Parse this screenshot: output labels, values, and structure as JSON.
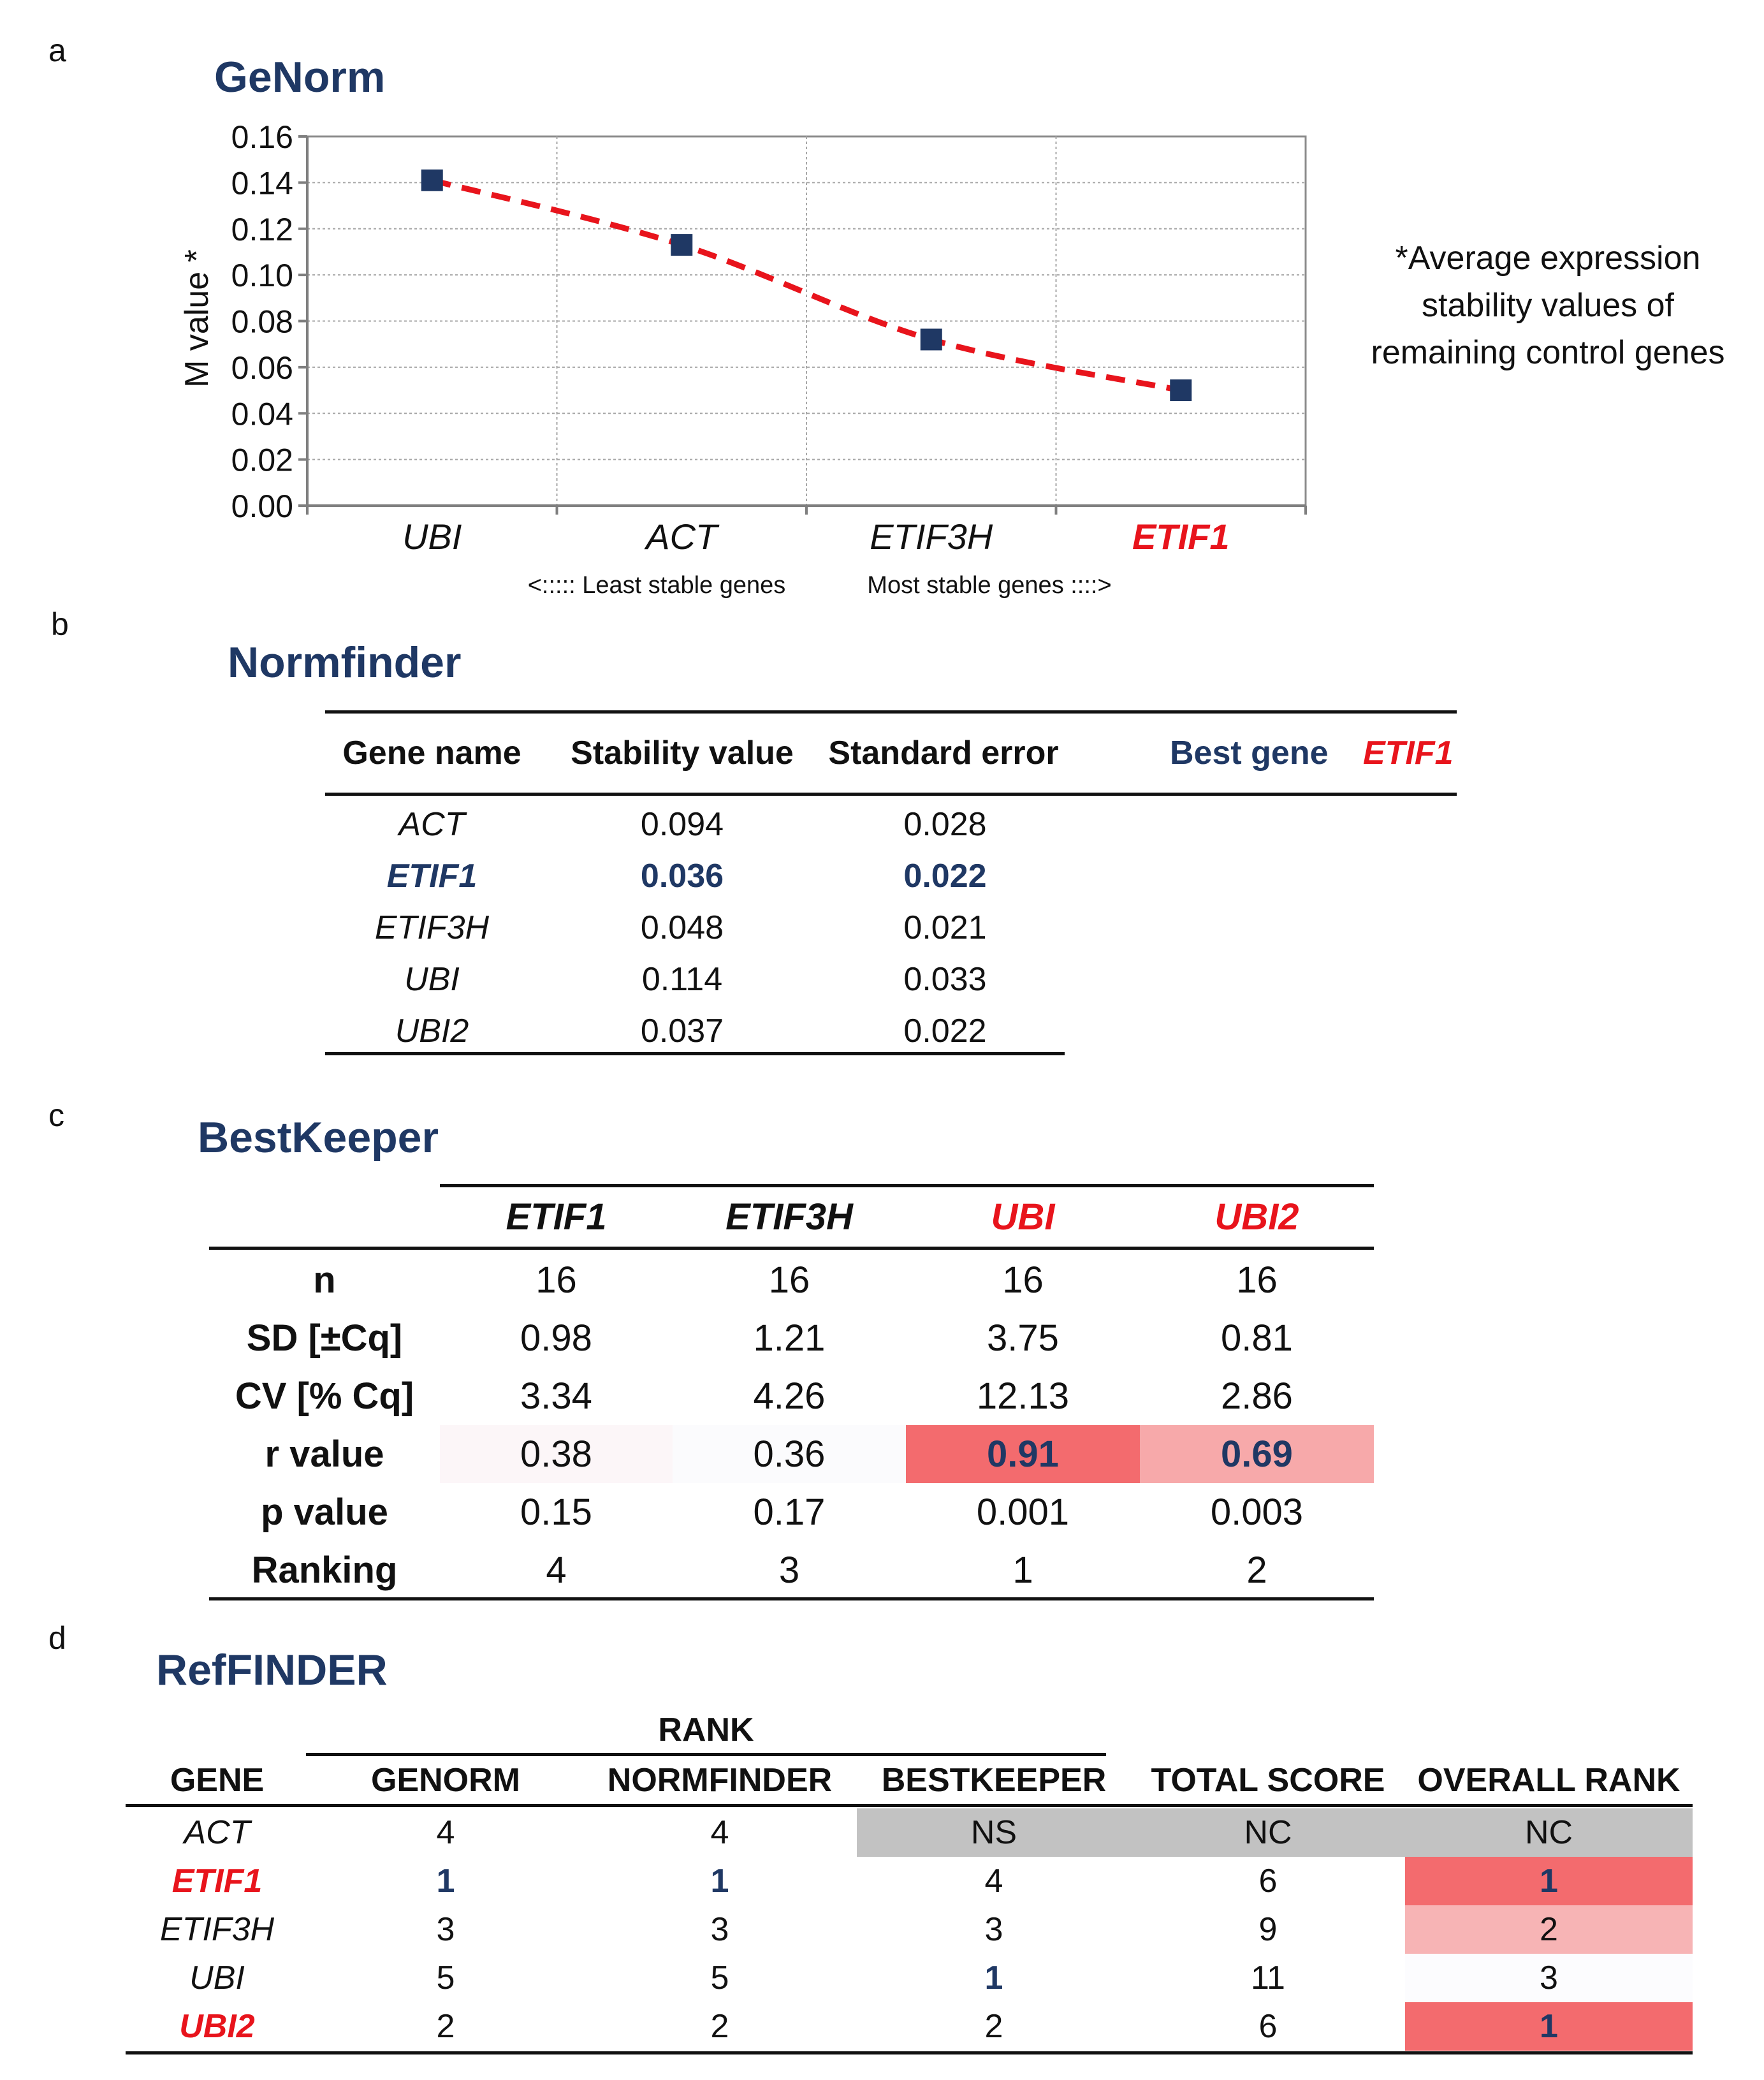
{
  "panels": {
    "a": "a",
    "b": "b",
    "c": "c",
    "d": "d"
  },
  "chart_data": {
    "type": "line",
    "title": "GeNorm",
    "ylabel": "M value *",
    "xlabel": "",
    "categories": [
      "UBI",
      "ACT",
      "ETIF3H",
      "ETIF1"
    ],
    "values": [
      0.141,
      0.113,
      0.072,
      0.05
    ],
    "ylim": [
      0,
      0.16
    ],
    "yticks": [
      0.0,
      0.02,
      0.04,
      0.06,
      0.08,
      0.1,
      0.12,
      0.14,
      0.16
    ],
    "ytick_labels": [
      "0.00",
      "0.02",
      "0.04",
      "0.06",
      "0.08",
      "0.10",
      "0.12",
      "0.14",
      "0.16"
    ],
    "grid": true,
    "series_style": {
      "line_color": "#e8141c",
      "line_style": "dashed",
      "marker": "square",
      "marker_color": "#1f3864"
    },
    "highlight_category_color": {
      "ETIF1": "#e8141c"
    },
    "annotation": [
      "*Average expression",
      "stability values of",
      "remaining control genes"
    ],
    "stability_arrows": {
      "left": "<::::: Least stable genes",
      "right": "Most stable genes ::::>"
    }
  },
  "normfinder": {
    "title": "Normfinder",
    "headers": [
      "Gene name",
      "Stability value",
      "Standard error"
    ],
    "best_gene_label": "Best gene",
    "best_gene": "ETIF1",
    "rows": [
      {
        "gene": "ACT",
        "stability": "0.094",
        "error": "0.028"
      },
      {
        "gene": "ETIF1",
        "stability": "0.036",
        "error": "0.022"
      },
      {
        "gene": "ETIF3H",
        "stability": "0.048",
        "error": "0.021"
      },
      {
        "gene": "UBI",
        "stability": "0.114",
        "error": "0.033"
      },
      {
        "gene": "UBI2",
        "stability": "0.037",
        "error": "0.022"
      }
    ]
  },
  "bestkeeper": {
    "title": "BestKeeper",
    "genes": [
      "ETIF1",
      "ETIF3H",
      "UBI",
      "UBI2"
    ],
    "rows": [
      {
        "label": "n",
        "values": [
          "16",
          "16",
          "16",
          "16"
        ]
      },
      {
        "label": "SD [±Cq]",
        "values": [
          "0.98",
          "1.21",
          "3.75",
          "0.81"
        ]
      },
      {
        "label": "CV [% Cq]",
        "values": [
          "3.34",
          "4.26",
          "12.13",
          "2.86"
        ]
      },
      {
        "label": "r value",
        "values": [
          "0.38",
          "0.36",
          "0.91",
          "0.69"
        ]
      },
      {
        "label": "p value",
        "values": [
          "0.15",
          "0.17",
          "0.001",
          "0.003"
        ]
      },
      {
        "label": "Ranking",
        "values": [
          "4",
          "3",
          "1",
          "2"
        ]
      }
    ],
    "colors": {
      "r_etif1": "#fcf6f8",
      "r_etif3h": "#fbfbfd",
      "r_ubi": "#f36b6e",
      "r_ubi2": "#f7a9aa"
    }
  },
  "reffinder": {
    "title": "RefFINDER",
    "group_header": "RANK",
    "headers": [
      "GENE",
      "GENORM",
      "NORMFINDER",
      "BESTKEEPER",
      "TOTAL SCORE",
      "OVERALL RANK"
    ],
    "rows": [
      {
        "gene": "ACT",
        "genorm": "4",
        "normfinder": "4",
        "bestkeeper": "NS",
        "total": "NC",
        "overall": "NC"
      },
      {
        "gene": "ETIF1",
        "genorm": "1",
        "normfinder": "1",
        "bestkeeper": "4",
        "total": "6",
        "overall": "1"
      },
      {
        "gene": "ETIF3H",
        "genorm": "3",
        "normfinder": "3",
        "bestkeeper": "3",
        "total": "9",
        "overall": "2"
      },
      {
        "gene": "UBI",
        "genorm": "5",
        "normfinder": "5",
        "bestkeeper": "1",
        "total": "11",
        "overall": "3"
      },
      {
        "gene": "UBI2",
        "genorm": "2",
        "normfinder": "2",
        "bestkeeper": "2",
        "total": "6",
        "overall": "1"
      }
    ],
    "colors": {
      "grey": "#c2c2c2",
      "rank1": "#f36b6e",
      "rank2": "#f7b4b5",
      "rank3": "#fcfcfe"
    }
  }
}
